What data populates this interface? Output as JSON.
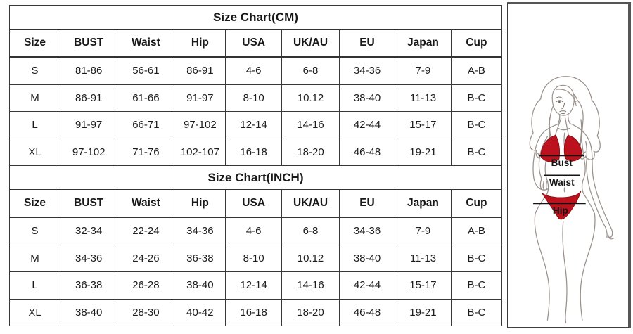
{
  "page": {
    "background": "#ffffff",
    "text_color": "#1c1c1c",
    "border_color": "#383838"
  },
  "tables": [
    {
      "title": "Size Chart(CM)",
      "columns": [
        "Size",
        "BUST",
        "Waist",
        "Hip",
        "USA",
        "UK/AU",
        "EU",
        "Japan",
        "Cup"
      ],
      "rows": [
        [
          "S",
          "81-86",
          "56-61",
          "86-91",
          "4-6",
          "6-8",
          "34-36",
          "7-9",
          "A-B"
        ],
        [
          "M",
          "86-91",
          "61-66",
          "91-97",
          "8-10",
          "10.12",
          "38-40",
          "11-13",
          "B-C"
        ],
        [
          "L",
          "91-97",
          "66-71",
          "97-102",
          "12-14",
          "14-16",
          "42-44",
          "15-17",
          "B-C"
        ],
        [
          "XL",
          "97-102",
          "71-76",
          "102-107",
          "16-18",
          "18-20",
          "46-48",
          "19-21",
          "B-C"
        ]
      ]
    },
    {
      "title": "Size Chart(INCH)",
      "columns": [
        "Size",
        "BUST",
        "Waist",
        "Hip",
        "USA",
        "UK/AU",
        "EU",
        "Japan",
        "Cup"
      ],
      "rows": [
        [
          "S",
          "32-34",
          "22-24",
          "34-36",
          "4-6",
          "6-8",
          "34-36",
          "7-9",
          "A-B"
        ],
        [
          "M",
          "34-36",
          "24-26",
          "36-38",
          "8-10",
          "10.12",
          "38-40",
          "11-13",
          "B-C"
        ],
        [
          "L",
          "36-38",
          "26-28",
          "38-40",
          "12-14",
          "14-16",
          "42-44",
          "15-17",
          "B-C"
        ],
        [
          "XL",
          "38-40",
          "28-30",
          "40-42",
          "16-18",
          "18-20",
          "46-48",
          "19-21",
          "B-C"
        ]
      ]
    }
  ],
  "figure": {
    "description": "line-art woman wearing red bikini with measurement guides",
    "labels": {
      "bust": "Bust",
      "waist": "Waist",
      "hip": "Hip"
    },
    "colors": {
      "bikini": "#bc121e",
      "bikini_outline": "#7e0a12",
      "line_art": "#9b918c",
      "measure_line": "#141414",
      "label_text": "#141414"
    }
  }
}
